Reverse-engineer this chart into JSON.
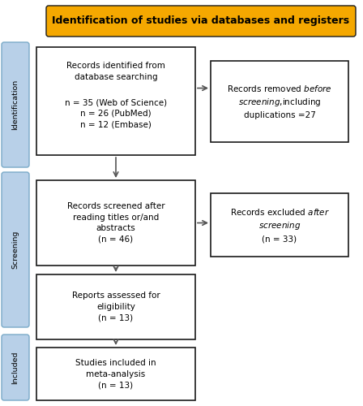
{
  "title": "Identification of studies via databases and registers",
  "title_bg": "#F5A800",
  "title_color": "#000000",
  "title_fontsize": 9.5,
  "box_bg": "#ffffff",
  "box_edge": "#1a1a1a",
  "side_label_bg": "#B8D0E8",
  "side_label_color": "#000000",
  "side_labels": [
    "Identification",
    "Screening",
    "Included"
  ],
  "bg_color": "#ffffff",
  "arrow_color": "#555555"
}
